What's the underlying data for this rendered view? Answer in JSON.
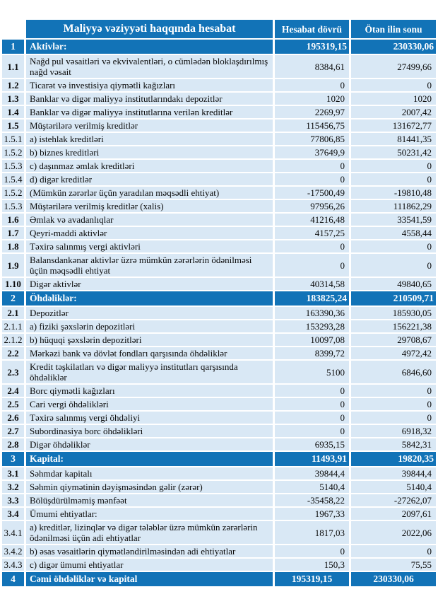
{
  "colors": {
    "header_blue": "#1273b7",
    "row_light_blue": "#d9e8f5",
    "header_text": "#ffffff",
    "body_text": "#0a0a0a"
  },
  "table": {
    "title": "Maliyyə vəziyyəti haqqında hesabat",
    "columns": {
      "period": "Hesabat dövrü",
      "prev": "Ötən ilin sonu"
    },
    "rows": [
      {
        "no": "1",
        "label": "Aktivlər:",
        "period": "195319,15",
        "prev": "230330,06",
        "type": "section"
      },
      {
        "no": "1.1",
        "label": "Nağd pul vəsaitləri və ekvivalentləri, o cümlədən bloklaşdırılmış nağd vəsait",
        "period": "8384,61",
        "prev": "27499,66",
        "type": "main"
      },
      {
        "no": "1.2",
        "label": "Ticarət və investisiya qiymətli kağızları",
        "period": "0",
        "prev": "0",
        "type": "main"
      },
      {
        "no": "1.3",
        "label": "Banklar və digər maliyyə institutlarındakı depozitlər",
        "period": "1020",
        "prev": "1020",
        "type": "main"
      },
      {
        "no": "1.4",
        "label": "Banklar və digər maliyyə institutlarına verilən kreditlər",
        "period": "2269,97",
        "prev": "2007,42",
        "type": "main"
      },
      {
        "no": "1.5",
        "label": "Müştərilərə verilmiş kreditlər",
        "period": "115456,75",
        "prev": "131672,77",
        "type": "main"
      },
      {
        "no": "1.5.1",
        "label": "a) istehlak kreditləri",
        "period": "77806,85",
        "prev": "81441,35",
        "type": "sub"
      },
      {
        "no": "1.5.2",
        "label": "b) biznes kreditləri",
        "period": "37649,9",
        "prev": "50231,42",
        "type": "sub"
      },
      {
        "no": "1.5.3",
        "label": "c) daşınmaz əmlak kreditləri",
        "period": "0",
        "prev": "0",
        "type": "sub"
      },
      {
        "no": "1.5.4",
        "label": "d) digər kreditlər",
        "period": "0",
        "prev": "0",
        "type": "sub"
      },
      {
        "no": "1.5.2",
        "label": "(Mümkün zərərlər üçün yaradılan məqsədli ehtiyat)",
        "period": "-17500,49",
        "prev": "-19810,48",
        "type": "sub"
      },
      {
        "no": "1.5.3",
        "label": "Müştərilərə verilmiş kreditlər (xalis)",
        "period": "97956,26",
        "prev": "111862,29",
        "type": "sub"
      },
      {
        "no": "1.6",
        "label": "Əmlak və avadanlıqlar",
        "period": "41216,48",
        "prev": "33541,59",
        "type": "main"
      },
      {
        "no": "1.7",
        "label": "Qeyri-maddi aktivlər",
        "period": "4157,25",
        "prev": "4558,44",
        "type": "main"
      },
      {
        "no": "1.8",
        "label": "Təxirə salınmış vergi aktivləri",
        "period": "0",
        "prev": "0",
        "type": "main"
      },
      {
        "no": "1.9",
        "label": "Balansdankənar aktivlər üzrə mümkün zərərlərin ödənilməsi üçün məqsədli ehtiyat",
        "period": "0",
        "prev": "0",
        "type": "main"
      },
      {
        "no": "1.10",
        "label": "Digər aktivlər",
        "period": "40314,58",
        "prev": "49840,65",
        "type": "main"
      },
      {
        "no": "2",
        "label": "Öhdəliklər:",
        "period": "183825,24",
        "prev": "210509,71",
        "type": "section"
      },
      {
        "no": "2.1",
        "label": "Depozitlər",
        "period": "163390,36",
        "prev": "185930,05",
        "type": "main"
      },
      {
        "no": "2.1.1",
        "label": "a) fiziki şəxslərin depozitləri",
        "period": "153293,28",
        "prev": "156221,38",
        "type": "sub"
      },
      {
        "no": "2.1.2",
        "label": "b) hüquqi şəxslərin depozitləri",
        "period": "10097,08",
        "prev": "29708,67",
        "type": "sub"
      },
      {
        "no": "2.2",
        "label": "Mərkəzi bank və dövlət fondları qarşısında öhdəliklər",
        "period": "8399,72",
        "prev": "4972,42",
        "type": "main"
      },
      {
        "no": "2.3",
        "label": "Kredit təşkilatları və digər maliyyə institutları qarşısında öhdəliklər",
        "period": "5100",
        "prev": "6846,60",
        "type": "main"
      },
      {
        "no": "2.4",
        "label": "Borc qiymətli kağızları",
        "period": "0",
        "prev": "0",
        "type": "main"
      },
      {
        "no": "2.5",
        "label": "Cari vergi öhdəlikləri",
        "period": "0",
        "prev": "0",
        "type": "main"
      },
      {
        "no": "2.6",
        "label": "Təxirə salınmış vergi öhdəliyi",
        "period": "0",
        "prev": "0",
        "type": "main"
      },
      {
        "no": "2.7",
        "label": "Subordinasiya borc öhdəlikləri",
        "period": "0",
        "prev": "6918,32",
        "type": "main"
      },
      {
        "no": "2.8",
        "label": "Digər öhdəliklər",
        "period": "6935,15",
        "prev": "5842,31",
        "type": "main"
      },
      {
        "no": "3",
        "label": "Kapital:",
        "period": "11493,91",
        "prev": "19820,35",
        "type": "section"
      },
      {
        "no": "3.1",
        "label": "Səhmdar kapitalı",
        "period": "39844,4",
        "prev": "39844,4",
        "type": "main"
      },
      {
        "no": "3.2",
        "label": "Səhmin qiymətinin dəyişməsindən gəlir (zərər)",
        "period": "5140,4",
        "prev": "5140,4",
        "type": "main"
      },
      {
        "no": "3.3",
        "label": "Bölüşdürülməmiş mənfəət",
        "period": "-35458,22",
        "prev": "-27262,07",
        "type": "main"
      },
      {
        "no": "3.4",
        "label": "Ümumi ehtiyatlar:",
        "period": "1967,33",
        "prev": "2097,61",
        "type": "main"
      },
      {
        "no": "3.4.1",
        "label": "a) kreditlər, lizinqlər və digər tələblər üzrə mümkün zərərlərin ödənilməsi üçün adi ehtiyatlar",
        "period": "1817,03",
        "prev": "2022,06",
        "type": "sub"
      },
      {
        "no": "3.4.2",
        "label": "b) əsas vəsaitlərin qiymətləndirilməsindən adi ehtiyatlar",
        "period": "0",
        "prev": "0",
        "type": "sub"
      },
      {
        "no": "3.4.3",
        "label": "c) digər ümumi ehtiyatlar",
        "period": "150,3",
        "prev": "75,55",
        "type": "sub"
      },
      {
        "no": "4",
        "label": "Cəmi öhdəliklər və kapital",
        "period": "195319,15",
        "prev": "230330,06",
        "type": "section",
        "align": "center"
      }
    ]
  }
}
